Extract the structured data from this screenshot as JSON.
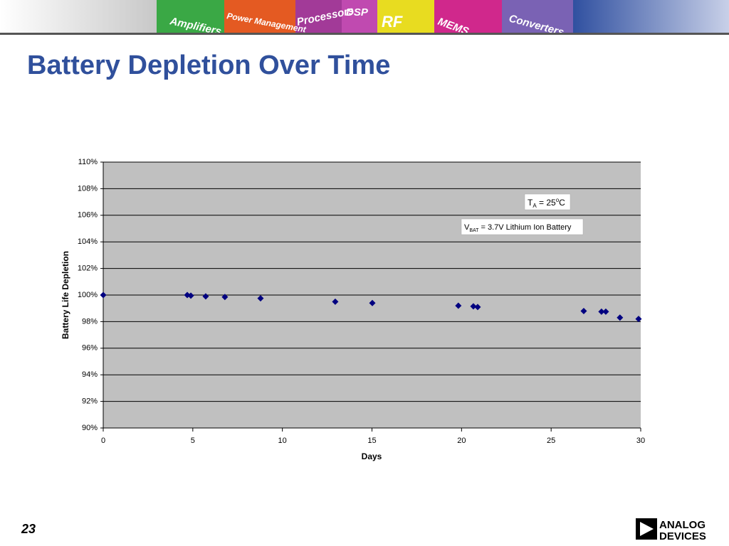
{
  "slide": {
    "title": "Battery Depletion Over Time",
    "page_number": "23",
    "logo": [
      "ANALOG",
      "DEVICES"
    ],
    "banner": [
      "Amplifiers",
      "Power Management",
      "Processors",
      "DSP",
      "RF",
      "MEMS",
      "Converters"
    ]
  },
  "chart_data": {
    "type": "scatter",
    "x_label": "Days",
    "y_label": "Battery Life Depletion",
    "x": [
      0,
      4.69,
      4.89,
      5.72,
      6.79,
      8.78,
      12.95,
      15.02,
      19.82,
      20.66,
      20.9,
      26.82,
      27.81,
      28.05,
      28.84,
      29.88
    ],
    "values": [
      100.0,
      100.0,
      99.95,
      99.9,
      99.85,
      99.75,
      99.5,
      99.4,
      99.2,
      99.15,
      99.1,
      98.8,
      98.75,
      98.75,
      98.3,
      98.2
    ],
    "color": "#000080",
    "xlim": [
      0,
      30
    ],
    "xticks": [
      0,
      5,
      10,
      15,
      20,
      25,
      30
    ],
    "ylim": [
      90,
      110
    ],
    "yticks": [
      {
        "value": 90,
        "label": "90%"
      },
      {
        "value": 92,
        "label": "92%"
      },
      {
        "value": 94,
        "label": "94%"
      },
      {
        "value": 96,
        "label": "96%"
      },
      {
        "value": 98,
        "label": "98%"
      },
      {
        "value": 100,
        "label": "100%"
      },
      {
        "value": 102,
        "label": "102%"
      },
      {
        "value": 104,
        "label": "104%"
      },
      {
        "value": 106,
        "label": "106%"
      },
      {
        "value": 108,
        "label": "108%"
      },
      {
        "value": 110,
        "label": "110%"
      }
    ],
    "grid": true,
    "annotations": [
      [
        "T",
        "A",
        " = 25",
        "o",
        "C"
      ],
      [
        "V",
        "BAT",
        " = 3.7V Lithium Ion Battery"
      ]
    ]
  }
}
